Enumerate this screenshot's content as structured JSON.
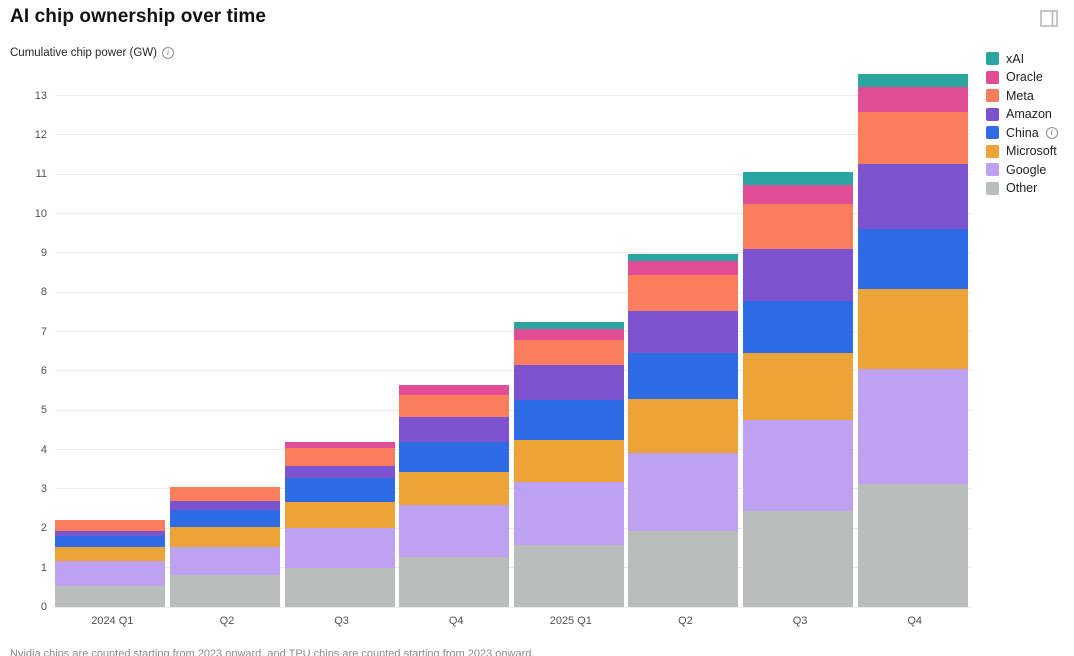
{
  "header": {
    "title": "AI chip ownership over time"
  },
  "subtitle": {
    "label": "Cumulative chip power (GW)",
    "info_icon": "i"
  },
  "legend": {
    "items": [
      {
        "label": "xAI",
        "color": "#2aa5a0",
        "info": false
      },
      {
        "label": "Oracle",
        "color": "#e04d96",
        "info": false
      },
      {
        "label": "Meta",
        "color": "#fa7d5c",
        "info": false
      },
      {
        "label": "Amazon",
        "color": "#7d53cf",
        "info": false
      },
      {
        "label": "China",
        "color": "#2e6be4",
        "info": true
      },
      {
        "label": "Microsoft",
        "color": "#eca438",
        "info": false
      },
      {
        "label": "Google",
        "color": "#bfa1f2",
        "info": false
      },
      {
        "label": "Other",
        "color": "#b9bdbb",
        "info": false
      }
    ]
  },
  "chart_data": {
    "type": "bar",
    "variant": "stacked",
    "title": "AI chip ownership over time",
    "ylabel": "Cumulative chip power (GW)",
    "xlabel": "",
    "categories": [
      "2024 Q1",
      "Q2",
      "Q3",
      "Q4",
      "2025 Q1",
      "Q2",
      "Q3",
      "Q4"
    ],
    "y_ticks": [
      0,
      1,
      2,
      3,
      4,
      5,
      6,
      7,
      8,
      9,
      10,
      11,
      12,
      13
    ],
    "ylim": [
      0,
      13.6
    ],
    "grid": "horizontal",
    "legend_position": "top-right",
    "stack_order": "bottom-to-top",
    "series": [
      {
        "name": "Other",
        "color": "#b9bdbb",
        "values": [
          0.53,
          0.81,
          0.98,
          1.28,
          1.58,
          1.93,
          2.43,
          3.13
        ]
      },
      {
        "name": "Google",
        "color": "#bfa1f2",
        "values": [
          0.65,
          0.72,
          1.02,
          1.31,
          1.61,
          1.98,
          2.33,
          2.92
        ]
      },
      {
        "name": "Microsoft",
        "color": "#eca438",
        "values": [
          0.34,
          0.51,
          0.68,
          0.85,
          1.06,
          1.38,
          1.7,
          2.04
        ]
      },
      {
        "name": "China",
        "color": "#2e6be4",
        "values": [
          0.29,
          0.42,
          0.6,
          0.76,
          1.02,
          1.16,
          1.33,
          1.53
        ]
      },
      {
        "name": "Amazon",
        "color": "#7d53cf",
        "values": [
          0.13,
          0.24,
          0.3,
          0.64,
          0.89,
          1.08,
          1.32,
          1.65
        ]
      },
      {
        "name": "Meta",
        "color": "#fa7d5c",
        "values": [
          0.26,
          0.36,
          0.47,
          0.55,
          0.64,
          0.92,
          1.14,
          1.31
        ]
      },
      {
        "name": "Oracle",
        "color": "#e04d96",
        "values": [
          0.0,
          0.0,
          0.14,
          0.25,
          0.28,
          0.34,
          0.47,
          0.64
        ]
      },
      {
        "name": "xAI",
        "color": "#2aa5a0",
        "values": [
          0.0,
          0.0,
          0.0,
          0.0,
          0.17,
          0.19,
          0.34,
          0.34
        ]
      }
    ]
  },
  "footnote": {
    "text": "Nvidia chips are counted starting from 2023 onward, and TPU chips are counted starting from 2023 onward."
  }
}
